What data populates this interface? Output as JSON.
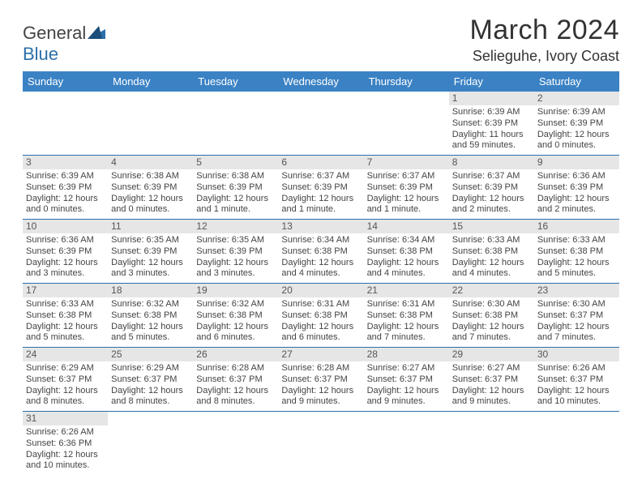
{
  "header": {
    "logo_general": "General",
    "logo_blue": "Blue",
    "month_title": "March 2024",
    "location": "Selieguhe, Ivory Coast"
  },
  "colors": {
    "header_bg": "#3b82c4",
    "row_border": "#2c6fab",
    "daynum_bg": "#e6e6e6"
  },
  "day_names": [
    "Sunday",
    "Monday",
    "Tuesday",
    "Wednesday",
    "Thursday",
    "Friday",
    "Saturday"
  ],
  "weeks": [
    [
      null,
      null,
      null,
      null,
      null,
      {
        "n": "1",
        "sr": "Sunrise: 6:39 AM",
        "ss": "Sunset: 6:39 PM",
        "dl1": "Daylight: 11 hours",
        "dl2": "and 59 minutes."
      },
      {
        "n": "2",
        "sr": "Sunrise: 6:39 AM",
        "ss": "Sunset: 6:39 PM",
        "dl1": "Daylight: 12 hours",
        "dl2": "and 0 minutes."
      }
    ],
    [
      {
        "n": "3",
        "sr": "Sunrise: 6:39 AM",
        "ss": "Sunset: 6:39 PM",
        "dl1": "Daylight: 12 hours",
        "dl2": "and 0 minutes."
      },
      {
        "n": "4",
        "sr": "Sunrise: 6:38 AM",
        "ss": "Sunset: 6:39 PM",
        "dl1": "Daylight: 12 hours",
        "dl2": "and 0 minutes."
      },
      {
        "n": "5",
        "sr": "Sunrise: 6:38 AM",
        "ss": "Sunset: 6:39 PM",
        "dl1": "Daylight: 12 hours",
        "dl2": "and 1 minute."
      },
      {
        "n": "6",
        "sr": "Sunrise: 6:37 AM",
        "ss": "Sunset: 6:39 PM",
        "dl1": "Daylight: 12 hours",
        "dl2": "and 1 minute."
      },
      {
        "n": "7",
        "sr": "Sunrise: 6:37 AM",
        "ss": "Sunset: 6:39 PM",
        "dl1": "Daylight: 12 hours",
        "dl2": "and 1 minute."
      },
      {
        "n": "8",
        "sr": "Sunrise: 6:37 AM",
        "ss": "Sunset: 6:39 PM",
        "dl1": "Daylight: 12 hours",
        "dl2": "and 2 minutes."
      },
      {
        "n": "9",
        "sr": "Sunrise: 6:36 AM",
        "ss": "Sunset: 6:39 PM",
        "dl1": "Daylight: 12 hours",
        "dl2": "and 2 minutes."
      }
    ],
    [
      {
        "n": "10",
        "sr": "Sunrise: 6:36 AM",
        "ss": "Sunset: 6:39 PM",
        "dl1": "Daylight: 12 hours",
        "dl2": "and 3 minutes."
      },
      {
        "n": "11",
        "sr": "Sunrise: 6:35 AM",
        "ss": "Sunset: 6:39 PM",
        "dl1": "Daylight: 12 hours",
        "dl2": "and 3 minutes."
      },
      {
        "n": "12",
        "sr": "Sunrise: 6:35 AM",
        "ss": "Sunset: 6:39 PM",
        "dl1": "Daylight: 12 hours",
        "dl2": "and 3 minutes."
      },
      {
        "n": "13",
        "sr": "Sunrise: 6:34 AM",
        "ss": "Sunset: 6:38 PM",
        "dl1": "Daylight: 12 hours",
        "dl2": "and 4 minutes."
      },
      {
        "n": "14",
        "sr": "Sunrise: 6:34 AM",
        "ss": "Sunset: 6:38 PM",
        "dl1": "Daylight: 12 hours",
        "dl2": "and 4 minutes."
      },
      {
        "n": "15",
        "sr": "Sunrise: 6:33 AM",
        "ss": "Sunset: 6:38 PM",
        "dl1": "Daylight: 12 hours",
        "dl2": "and 4 minutes."
      },
      {
        "n": "16",
        "sr": "Sunrise: 6:33 AM",
        "ss": "Sunset: 6:38 PM",
        "dl1": "Daylight: 12 hours",
        "dl2": "and 5 minutes."
      }
    ],
    [
      {
        "n": "17",
        "sr": "Sunrise: 6:33 AM",
        "ss": "Sunset: 6:38 PM",
        "dl1": "Daylight: 12 hours",
        "dl2": "and 5 minutes."
      },
      {
        "n": "18",
        "sr": "Sunrise: 6:32 AM",
        "ss": "Sunset: 6:38 PM",
        "dl1": "Daylight: 12 hours",
        "dl2": "and 5 minutes."
      },
      {
        "n": "19",
        "sr": "Sunrise: 6:32 AM",
        "ss": "Sunset: 6:38 PM",
        "dl1": "Daylight: 12 hours",
        "dl2": "and 6 minutes."
      },
      {
        "n": "20",
        "sr": "Sunrise: 6:31 AM",
        "ss": "Sunset: 6:38 PM",
        "dl1": "Daylight: 12 hours",
        "dl2": "and 6 minutes."
      },
      {
        "n": "21",
        "sr": "Sunrise: 6:31 AM",
        "ss": "Sunset: 6:38 PM",
        "dl1": "Daylight: 12 hours",
        "dl2": "and 7 minutes."
      },
      {
        "n": "22",
        "sr": "Sunrise: 6:30 AM",
        "ss": "Sunset: 6:38 PM",
        "dl1": "Daylight: 12 hours",
        "dl2": "and 7 minutes."
      },
      {
        "n": "23",
        "sr": "Sunrise: 6:30 AM",
        "ss": "Sunset: 6:37 PM",
        "dl1": "Daylight: 12 hours",
        "dl2": "and 7 minutes."
      }
    ],
    [
      {
        "n": "24",
        "sr": "Sunrise: 6:29 AM",
        "ss": "Sunset: 6:37 PM",
        "dl1": "Daylight: 12 hours",
        "dl2": "and 8 minutes."
      },
      {
        "n": "25",
        "sr": "Sunrise: 6:29 AM",
        "ss": "Sunset: 6:37 PM",
        "dl1": "Daylight: 12 hours",
        "dl2": "and 8 minutes."
      },
      {
        "n": "26",
        "sr": "Sunrise: 6:28 AM",
        "ss": "Sunset: 6:37 PM",
        "dl1": "Daylight: 12 hours",
        "dl2": "and 8 minutes."
      },
      {
        "n": "27",
        "sr": "Sunrise: 6:28 AM",
        "ss": "Sunset: 6:37 PM",
        "dl1": "Daylight: 12 hours",
        "dl2": "and 9 minutes."
      },
      {
        "n": "28",
        "sr": "Sunrise: 6:27 AM",
        "ss": "Sunset: 6:37 PM",
        "dl1": "Daylight: 12 hours",
        "dl2": "and 9 minutes."
      },
      {
        "n": "29",
        "sr": "Sunrise: 6:27 AM",
        "ss": "Sunset: 6:37 PM",
        "dl1": "Daylight: 12 hours",
        "dl2": "and 9 minutes."
      },
      {
        "n": "30",
        "sr": "Sunrise: 6:26 AM",
        "ss": "Sunset: 6:37 PM",
        "dl1": "Daylight: 12 hours",
        "dl2": "and 10 minutes."
      }
    ],
    [
      {
        "n": "31",
        "sr": "Sunrise: 6:26 AM",
        "ss": "Sunset: 6:36 PM",
        "dl1": "Daylight: 12 hours",
        "dl2": "and 10 minutes."
      },
      null,
      null,
      null,
      null,
      null,
      null
    ]
  ]
}
